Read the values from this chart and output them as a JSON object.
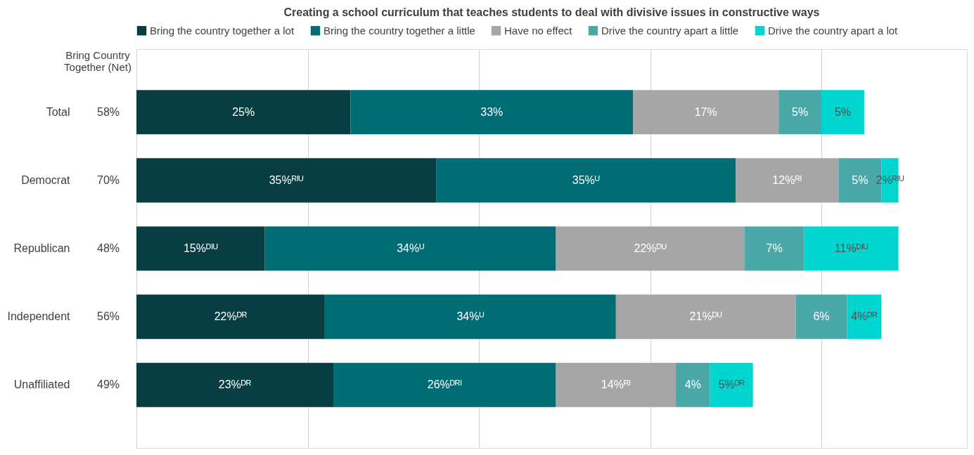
{
  "chart_data": {
    "type": "bar",
    "orientation": "horizontal",
    "stacked": true,
    "title": "Creating a school curriculum that teaches students to deal with divisive issues in constructive ways",
    "categories": [
      "Total",
      "Democrat",
      "Republican",
      "Independent",
      "Unaffiliated"
    ],
    "series": [
      {
        "name": "Bring the country together a lot",
        "color": "#083d42",
        "values": [
          25,
          35,
          15,
          22,
          23
        ],
        "value_labels": [
          "25%",
          "35%ᴿᴵᵁ",
          "15%ᴰᴵᵁ",
          "22%ᴰᴿ",
          "23%ᴰᴿ"
        ]
      },
      {
        "name": "Bring the country together a little",
        "color": "#006d75",
        "values": [
          33,
          35,
          34,
          34,
          26
        ],
        "value_labels": [
          "33%",
          "35%ᵁ",
          "34%ᵁ",
          "34%ᵁ",
          "26%ᴰᴿᴵ"
        ]
      },
      {
        "name": "Have no effect",
        "color": "#a6a6a6",
        "values": [
          17,
          12,
          22,
          21,
          14
        ],
        "value_labels": [
          "17%",
          "12%ᴿᴵ",
          "22%ᴰᵁ",
          "21%ᴰᵁ",
          "14%ᴿᴵ"
        ]
      },
      {
        "name": "Drive the country apart a little",
        "color": "#4aa8a8",
        "values": [
          5,
          5,
          7,
          6,
          4
        ],
        "value_labels": [
          "5%",
          "5%",
          "7%",
          "6%",
          "4%"
        ]
      },
      {
        "name": "Drive the country apart a lot",
        "color": "#00d5d0",
        "values": [
          5,
          2,
          11,
          4,
          5
        ],
        "value_labels": [
          "5%",
          "2%ᴿᴵᵁ",
          "11%ᴰᴵᵁ",
          "4%ᴰᴿ",
          "5%ᴰᴿ"
        ]
      }
    ],
    "xlim": [
      0,
      97
    ],
    "xticks": [
      {
        "value": 0,
        "label": null
      },
      {
        "value": 20,
        "label": null
      },
      {
        "value": 40,
        "label": null
      },
      {
        "value": 60,
        "label": null
      },
      {
        "value": 80,
        "label": null
      }
    ],
    "grid": "x",
    "tick_labels": "y",
    "legend": "top",
    "annotations": [
      "Bring Country Together (Net)",
      "58%",
      "70%",
      "48%",
      "56%",
      "49%"
    ]
  }
}
